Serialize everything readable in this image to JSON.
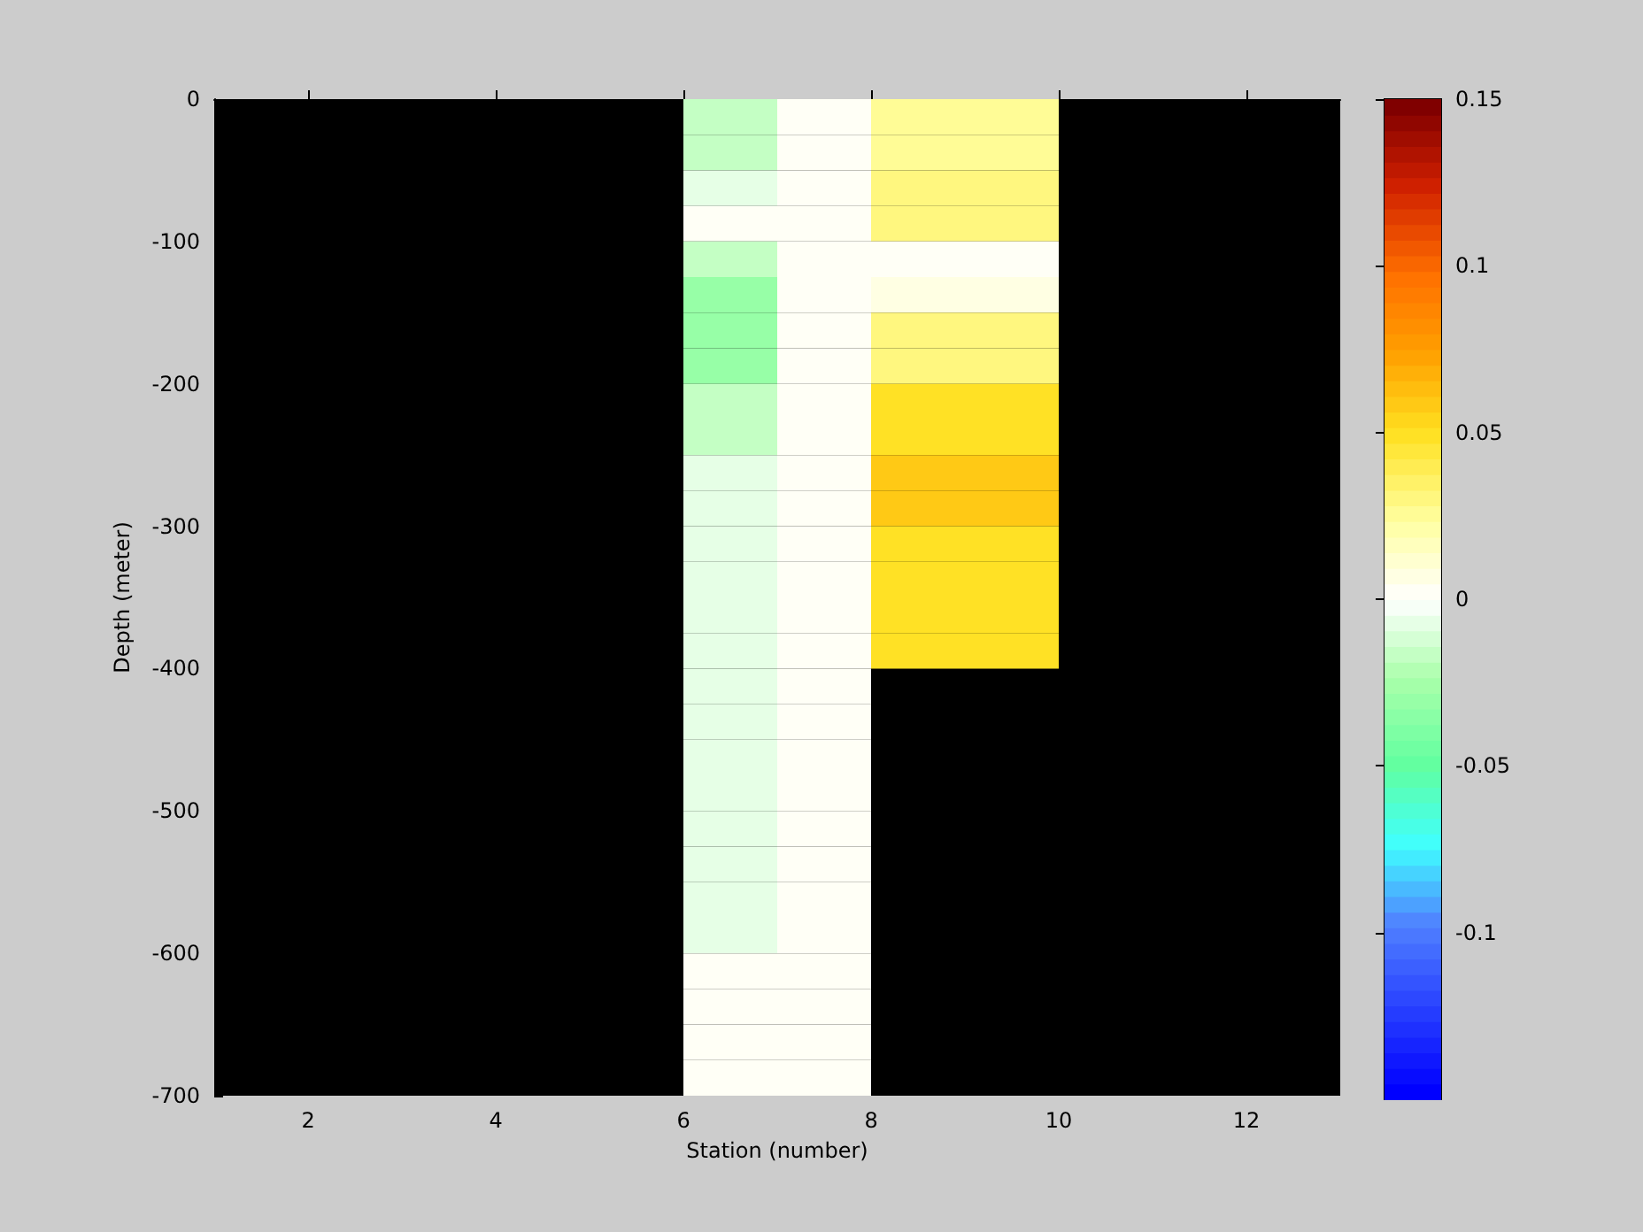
{
  "chart_data": {
    "type": "heatmap",
    "xlabel": "Station (number)",
    "ylabel": "Depth (meter)",
    "x": [
      6.5,
      7.5,
      8.5,
      9.5
    ],
    "y": [
      -12.5,
      -37.5,
      -62.5,
      -87.5,
      -112.5,
      -137.5,
      -162.5,
      -187.5,
      -212.5,
      -237.5,
      -262.5,
      -287.5,
      -312.5,
      -337.5,
      -362.5,
      -387.5,
      -412.5,
      -437.5,
      -462.5,
      -487.5,
      -512.5,
      -537.5,
      -562.5,
      -587.5,
      -612.5,
      -637.5,
      -662.5,
      -687.5
    ],
    "xlim": [
      1,
      13
    ],
    "xticks": [
      2,
      4,
      6,
      8,
      10,
      12
    ],
    "ylim": [
      -700,
      0
    ],
    "yticks": [
      -700,
      -600,
      -500,
      -400,
      -300,
      -200,
      -100,
      0
    ],
    "clim": [
      -0.15,
      0.15
    ],
    "cticks": [
      -0.1,
      -0.05,
      0,
      0.05,
      0.1,
      0.15
    ],
    "cells": [
      [
        -0.015,
        0.003,
        0.025,
        0.025
      ],
      [
        -0.015,
        0.003,
        0.025,
        0.025
      ],
      [
        -0.008,
        0.003,
        0.03,
        0.03
      ],
      [
        0,
        0.003,
        0.03,
        0.03
      ],
      [
        -0.015,
        0.003,
        0,
        0
      ],
      [
        -0.03,
        0.003,
        0.008,
        0.008
      ],
      [
        -0.03,
        0.003,
        0.03,
        0.03
      ],
      [
        -0.03,
        0.003,
        0.03,
        0.03
      ],
      [
        -0.015,
        0.003,
        0.05,
        0.05
      ],
      [
        -0.015,
        0.003,
        0.05,
        0.05
      ],
      [
        -0.005,
        0.003,
        0.06,
        0.06
      ],
      [
        -0.005,
        0.003,
        0.06,
        0.06
      ],
      [
        -0.005,
        0.003,
        0.05,
        0.05
      ],
      [
        -0.005,
        0.003,
        0.05,
        0.05
      ],
      [
        -0.005,
        0.003,
        0.05,
        0.05
      ],
      [
        -0.005,
        0.003,
        0.05,
        0.05
      ],
      [
        -0.005,
        0.003,
        null,
        null
      ],
      [
        -0.005,
        0.003,
        null,
        null
      ],
      [
        -0.005,
        0.003,
        null,
        null
      ],
      [
        -0.005,
        0.003,
        null,
        null
      ],
      [
        -0.005,
        0.003,
        null,
        null
      ],
      [
        -0.005,
        0.003,
        null,
        null
      ],
      [
        -0.005,
        0.003,
        null,
        null
      ],
      [
        -0.005,
        0.003,
        null,
        null
      ],
      [
        0.003,
        0.003,
        null,
        null
      ],
      [
        0.003,
        0.003,
        null,
        null
      ],
      [
        0.003,
        0.003,
        null,
        null
      ],
      [
        0.003,
        0.003,
        null,
        null
      ]
    ]
  }
}
